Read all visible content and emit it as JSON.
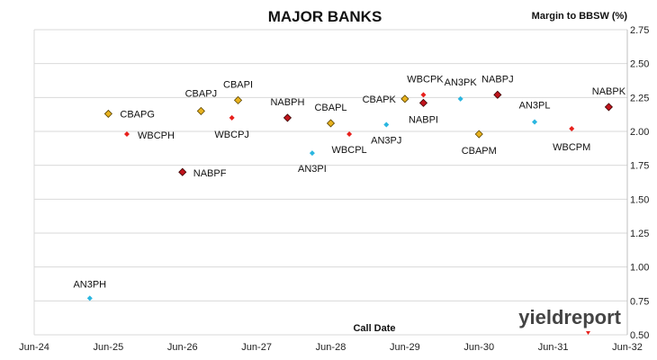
{
  "chart_data": {
    "type": "scatter",
    "title": "MAJOR BANKS",
    "ylabel": "Margin to BBSW (%)",
    "xlabel": "Call Date",
    "ylim": [
      0.5,
      2.75
    ],
    "yticks": [
      "0.50",
      "0.75",
      "1.00",
      "1.25",
      "1.50",
      "1.75",
      "2.00",
      "2.25",
      "2.50",
      "2.75"
    ],
    "xticks": [
      "Jun-24",
      "Jun-25",
      "Jun-26",
      "Jun-27",
      "Jun-28",
      "Jun-29",
      "Jun-30",
      "Jun-31",
      "Jun-32"
    ],
    "grid": "horizontal",
    "colors": {
      "CBA": "#e8b21f",
      "WBC": "#e8201c",
      "NAB": "#c0141c",
      "ANZ": "#2ab6e0"
    },
    "points": [
      {
        "label": "AN3PH",
        "x": "2025-03",
        "y": 0.77,
        "group": "ANZ"
      },
      {
        "label": "CBAPG",
        "x": "2025-06",
        "y": 2.13,
        "group": "CBA"
      },
      {
        "label": "WBCPH",
        "x": "2025-09",
        "y": 1.98,
        "group": "WBC"
      },
      {
        "label": "NABPF",
        "x": "2026-06",
        "y": 1.7,
        "group": "NAB"
      },
      {
        "label": "CBAPJ",
        "x": "2026-09",
        "y": 2.15,
        "group": "CBA"
      },
      {
        "label": "CBAPI",
        "x": "2027-03",
        "y": 2.23,
        "group": "CBA"
      },
      {
        "label": "WBCPJ",
        "x": "2027-02",
        "y": 2.1,
        "group": "WBC"
      },
      {
        "label": "NABPH",
        "x": "2027-11",
        "y": 2.1,
        "group": "NAB"
      },
      {
        "label": "AN3PI",
        "x": "2028-03",
        "y": 1.84,
        "group": "ANZ"
      },
      {
        "label": "CBAPL",
        "x": "2028-06",
        "y": 2.06,
        "group": "CBA"
      },
      {
        "label": "WBCPL",
        "x": "2028-09",
        "y": 1.98,
        "group": "WBC"
      },
      {
        "label": "AN3PJ",
        "x": "2029-03",
        "y": 2.05,
        "group": "ANZ"
      },
      {
        "label": "CBAPK",
        "x": "2029-06",
        "y": 2.24,
        "group": "CBA"
      },
      {
        "label": "WBCPK",
        "x": "2029-09",
        "y": 2.27,
        "group": "WBC"
      },
      {
        "label": "NABPI",
        "x": "2029-09",
        "y": 2.21,
        "group": "NAB"
      },
      {
        "label": "AN3PK",
        "x": "2030-03",
        "y": 2.24,
        "group": "ANZ"
      },
      {
        "label": "CBAPM",
        "x": "2030-06",
        "y": 1.98,
        "group": "CBA"
      },
      {
        "label": "NABPJ",
        "x": "2030-09",
        "y": 2.27,
        "group": "NAB"
      },
      {
        "label": "AN3PL",
        "x": "2031-03",
        "y": 2.07,
        "group": "ANZ"
      },
      {
        "label": "WBCPM",
        "x": "2031-09",
        "y": 2.02,
        "group": "WBC"
      },
      {
        "label": "NABPK",
        "x": "2032-03",
        "y": 2.18,
        "group": "NAB"
      }
    ]
  },
  "watermark": {
    "text": "yieldreport",
    "icon": "yieldreport-logo"
  }
}
